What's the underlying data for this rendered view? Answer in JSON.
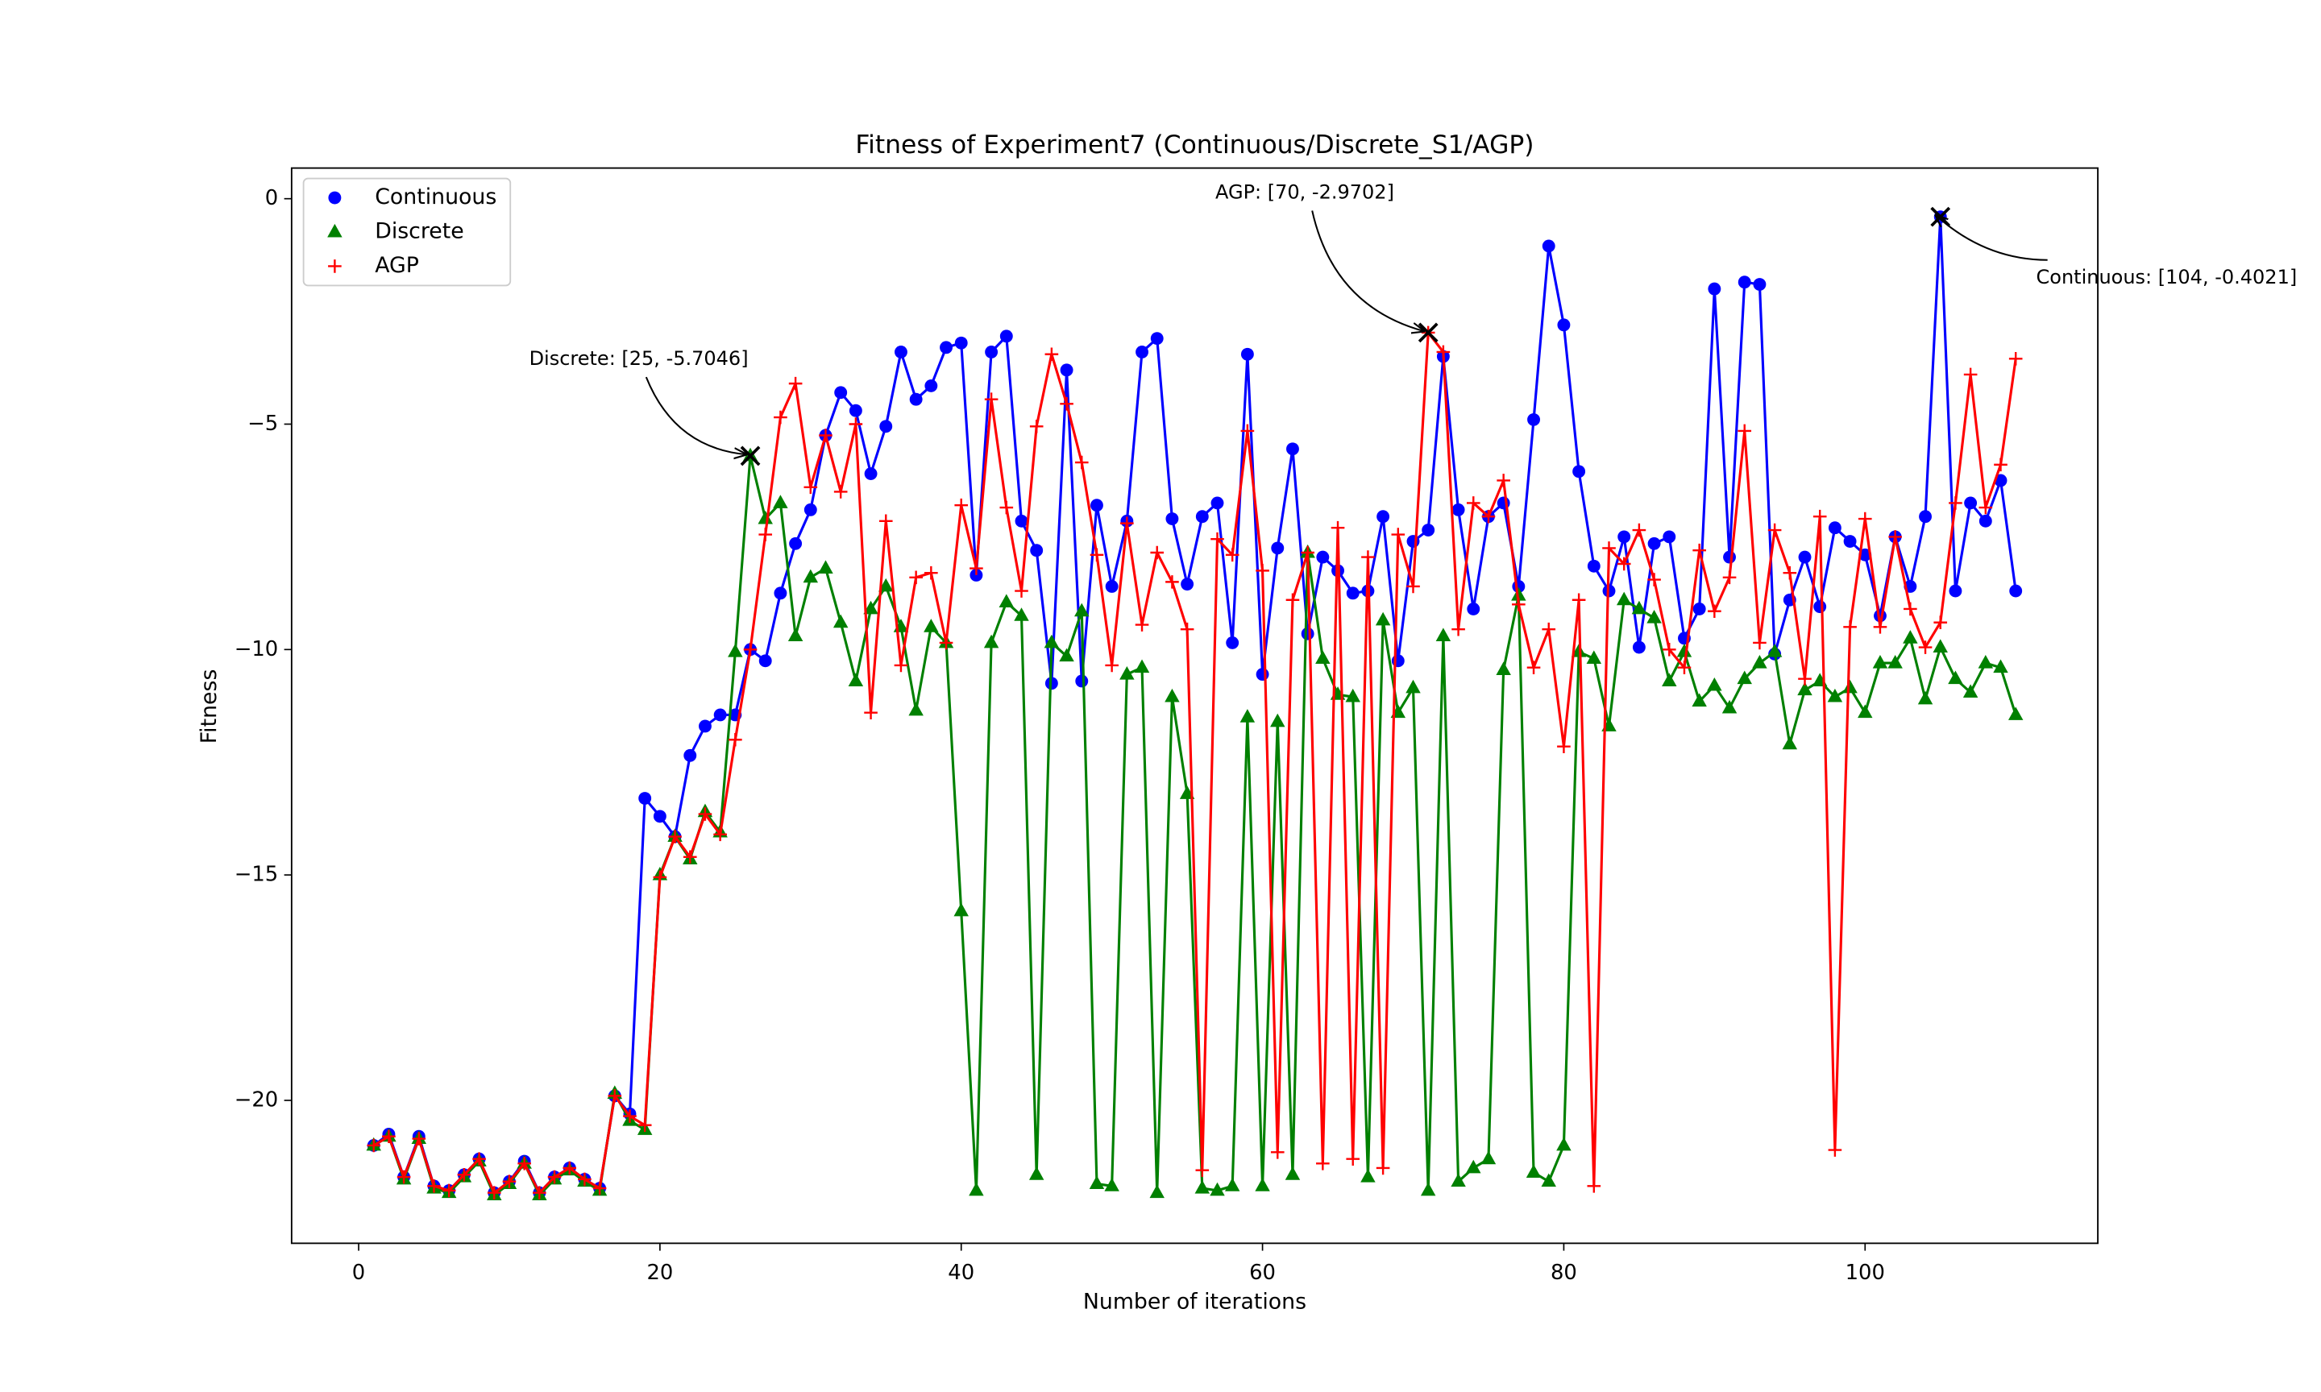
{
  "chart_data": {
    "type": "line",
    "title": "Fitness of Experiment7 (Continuous/Discrete_S1/AGP)",
    "x_label": "Number of iterations",
    "y_label": "Fitness",
    "xlim": [
      -4.45,
      115.45
    ],
    "ylim": [
      -23.17,
      0.68
    ],
    "xticks": [
      0,
      20,
      40,
      60,
      80,
      100
    ],
    "yticks": [
      {
        "value": 0,
        "label": "0"
      },
      {
        "value": -5,
        "label": "−5"
      },
      {
        "value": -10,
        "label": "−10"
      },
      {
        "value": -15,
        "label": "−15"
      },
      {
        "value": -20,
        "label": "−20"
      }
    ],
    "legend": "upper left",
    "x": [
      1,
      2,
      3,
      4,
      5,
      6,
      7,
      8,
      9,
      10,
      11,
      12,
      13,
      14,
      15,
      16,
      17,
      18,
      19,
      20,
      21,
      22,
      23,
      24,
      25,
      26,
      27,
      28,
      29,
      30,
      31,
      32,
      33,
      34,
      35,
      36,
      37,
      38,
      39,
      40,
      41,
      42,
      43,
      44,
      45,
      46,
      47,
      48,
      49,
      50,
      51,
      52,
      53,
      54,
      55,
      56,
      57,
      58,
      59,
      60,
      61,
      62,
      63,
      64,
      65,
      66,
      67,
      68,
      69,
      70,
      71,
      72,
      73,
      74,
      75,
      76,
      77,
      78,
      79,
      80,
      81,
      82,
      83,
      84,
      85,
      86,
      87,
      88,
      89,
      90,
      91,
      92,
      93,
      94,
      95,
      96,
      97,
      98,
      99,
      100,
      101,
      102,
      103,
      104,
      105,
      106,
      107,
      108,
      109,
      110
    ],
    "series": [
      {
        "name": "Continuous",
        "color": "#0000ff",
        "marker": "circle",
        "values": [
          -21.0,
          -20.75,
          -21.7,
          -20.8,
          -21.9,
          -22.0,
          -21.65,
          -21.3,
          -22.05,
          -21.8,
          -21.35,
          -22.05,
          -21.7,
          -21.5,
          -21.75,
          -21.95,
          -19.9,
          -20.3,
          -13.3,
          -13.7,
          -14.15,
          -12.35,
          -11.7,
          -11.45,
          -11.45,
          -10.0,
          -10.25,
          -8.75,
          -7.65,
          -6.9,
          -5.25,
          -4.3,
          -4.7,
          -6.1,
          -5.05,
          -3.4,
          -4.45,
          -4.15,
          -3.3,
          -3.2,
          -8.35,
          -3.4,
          -3.05,
          -7.15,
          -7.8,
          -10.75,
          -3.8,
          -10.7,
          -6.8,
          -8.6,
          -7.15,
          -3.4,
          -3.1,
          -7.1,
          -8.55,
          -7.05,
          -6.75,
          -9.85,
          -3.45,
          -10.55,
          -7.75,
          -5.55,
          -9.65,
          -7.95,
          -8.25,
          -8.75,
          -8.7,
          -7.05,
          -10.25,
          -7.6,
          -7.35,
          -3.5,
          -6.9,
          -9.1,
          -7.05,
          -6.75,
          -8.6,
          -4.9,
          -1.05,
          -2.8,
          -6.05,
          -8.15,
          -8.7,
          -7.5,
          -9.95,
          -7.65,
          -7.5,
          -9.75,
          -9.1,
          -2.0,
          -7.95,
          -1.85,
          -1.9,
          -10.1,
          -8.9,
          -7.95,
          -9.05,
          -7.3,
          -7.6,
          -7.9,
          -9.25,
          -7.5,
          -8.6,
          -7.05,
          -0.4021,
          -8.7,
          -6.75,
          -7.15,
          -6.25,
          -8.7
        ]
      },
      {
        "name": "Discrete",
        "color": "#008000",
        "marker": "triangle",
        "values": [
          -21.0,
          -20.8,
          -21.75,
          -20.85,
          -21.95,
          -22.05,
          -21.7,
          -21.35,
          -22.1,
          -21.85,
          -21.4,
          -22.1,
          -21.75,
          -21.55,
          -21.8,
          -22.0,
          -19.85,
          -20.45,
          -20.65,
          -15.0,
          -14.15,
          -14.65,
          -13.6,
          -14.05,
          -10.05,
          -5.7046,
          -7.1,
          -6.75,
          -9.7,
          -8.4,
          -8.2,
          -9.4,
          -10.7,
          -9.1,
          -8.6,
          -9.5,
          -11.35,
          -9.5,
          -9.85,
          -15.8,
          -22.0,
          -9.85,
          -8.95,
          -9.25,
          -21.65,
          -9.85,
          -10.15,
          -9.15,
          -21.85,
          -21.9,
          -10.55,
          -10.4,
          -22.05,
          -11.05,
          -13.2,
          -21.95,
          -22.0,
          -21.9,
          -11.5,
          -21.9,
          -11.6,
          -21.65,
          -7.85,
          -10.2,
          -11.0,
          -11.05,
          -21.7,
          -9.35,
          -11.4,
          -10.85,
          -22.0,
          -9.7,
          -21.8,
          -21.5,
          -21.3,
          -10.45,
          -8.8,
          -21.6,
          -21.8,
          -21.0,
          -10.05,
          -10.2,
          -11.7,
          -8.9,
          -9.1,
          -9.3,
          -10.7,
          -10.05,
          -11.15,
          -10.8,
          -11.3,
          -10.65,
          -10.3,
          -10.05,
          -12.1,
          -10.9,
          -10.7,
          -11.05,
          -10.85,
          -11.4,
          -10.3,
          -10.3,
          -9.75,
          -11.1,
          -9.95,
          -10.65,
          -10.95,
          -10.3,
          -10.4,
          -11.45
        ]
      },
      {
        "name": "AGP",
        "color": "#ff0000",
        "marker": "plus",
        "values": [
          -21.0,
          -20.8,
          -21.7,
          -20.85,
          -21.9,
          -22.0,
          -21.65,
          -21.3,
          -22.05,
          -21.8,
          -21.4,
          -22.05,
          -21.7,
          -21.5,
          -21.75,
          -21.95,
          -19.9,
          -20.35,
          -20.55,
          -15.05,
          -14.15,
          -14.6,
          -13.65,
          -14.1,
          -12.0,
          -10.0,
          -7.45,
          -4.85,
          -4.1,
          -6.4,
          -5.25,
          -6.5,
          -5.0,
          -11.4,
          -7.15,
          -10.35,
          -8.4,
          -8.3,
          -9.85,
          -6.8,
          -8.2,
          -4.45,
          -6.85,
          -8.7,
          -5.05,
          -3.45,
          -4.55,
          -5.85,
          -7.9,
          -10.35,
          -7.2,
          -9.45,
          -7.85,
          -8.5,
          -9.55,
          -21.55,
          -7.55,
          -7.9,
          -5.15,
          -8.25,
          -21.15,
          -8.9,
          -7.85,
          -21.4,
          -7.3,
          -21.3,
          -7.95,
          -21.5,
          -7.45,
          -8.6,
          -2.9702,
          -3.4,
          -9.55,
          -6.75,
          -7.05,
          -6.25,
          -9.0,
          -10.4,
          -9.55,
          -12.15,
          -8.9,
          -21.9,
          -7.75,
          -8.1,
          -7.35,
          -8.45,
          -10.0,
          -10.4,
          -7.8,
          -9.15,
          -8.4,
          -5.15,
          -9.85,
          -7.35,
          -8.3,
          -10.65,
          -7.05,
          -21.1,
          -9.5,
          -7.1,
          -9.5,
          -7.5,
          -9.1,
          -9.95,
          -9.4,
          -6.75,
          -3.9,
          -6.85,
          -5.9,
          -3.55
        ]
      }
    ],
    "annotations": [
      {
        "text": "Discrete: [25, -5.7046]",
        "x": 26,
        "y": -5.7046
      },
      {
        "text": "AGP: [70, -2.9702]",
        "x": 71,
        "y": -2.9702
      },
      {
        "text": "Continuous: [104, -0.4021]",
        "x": 105,
        "y": -0.4021
      }
    ]
  }
}
